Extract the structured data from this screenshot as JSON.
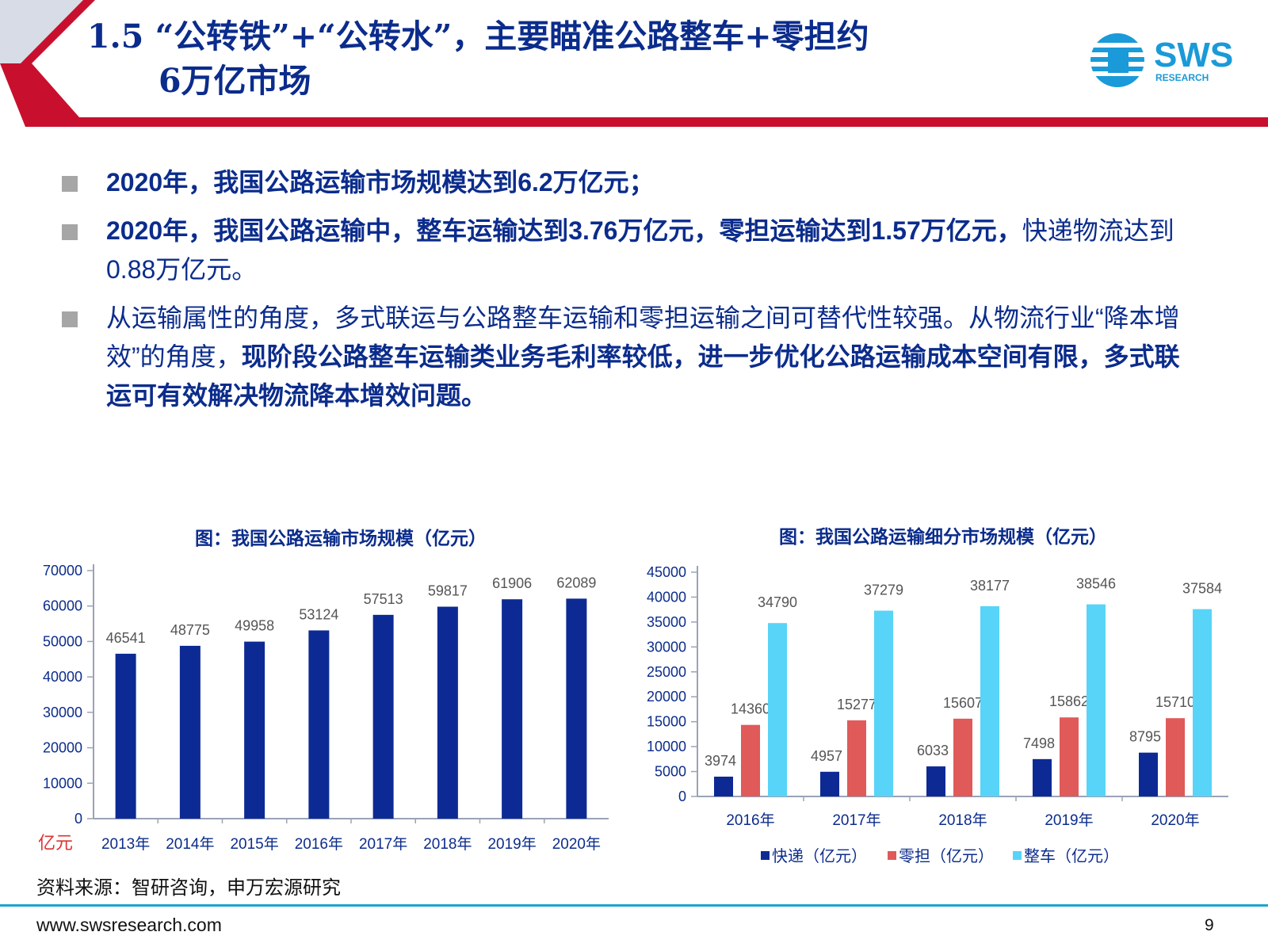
{
  "header": {
    "title_line1": "1.5 “公转铁”+“公转水”，主要瞄准公路整车+零担约",
    "title_line2": "6万亿市场",
    "logo_text": "SWS",
    "logo_subtext": "RESEARCH"
  },
  "bullets": [
    {
      "bold": "2020年，我国公路运输市场规模达到6.2万亿元；",
      "normal": "",
      "bold2": ""
    },
    {
      "bold": "2020年，我国公路运输中，整车运输达到3.76万亿元，零担运输达到1.57万亿元，",
      "normal": "快递物流达到0.88万亿元。",
      "bold2": ""
    },
    {
      "bold": "",
      "normal": "从运输属性的角度，多式联运与公路整车运输和零担运输之间可替代性较强。从物流行业“降本增效”的角度，",
      "bold2": "现阶段公路整车运输类业务毛利率较低，进一步优化公路运输成本空间有限，多式联运可有效解决物流降本增效问题。"
    }
  ],
  "chart_data": [
    {
      "type": "bar",
      "title": "图：我国公路运输市场规模（亿元）",
      "unit_label": "亿元",
      "categories": [
        "2013年",
        "2014年",
        "2015年",
        "2016年",
        "2017年",
        "2018年",
        "2019年",
        "2020年"
      ],
      "values": [
        46541,
        48775,
        49958,
        53124,
        57513,
        59817,
        61906,
        62089
      ],
      "yticks": [
        0,
        10000,
        20000,
        30000,
        40000,
        50000,
        60000,
        70000
      ],
      "ylim": [
        0,
        70000
      ],
      "color": "#0d2a94"
    },
    {
      "type": "bar",
      "title": "图：我国公路运输细分市场规模（亿元）",
      "categories": [
        "2016年",
        "2017年",
        "2018年",
        "2019年",
        "2020年"
      ],
      "series": [
        {
          "name": "快递（亿元）",
          "values": [
            3974,
            4957,
            6033,
            7498,
            8795
          ],
          "color": "#0d2a94"
        },
        {
          "name": "零担（亿元）",
          "values": [
            14360,
            15277,
            15607,
            15862,
            15710
          ],
          "color": "#e05a5a"
        },
        {
          "name": "整车（亿元）",
          "values": [
            34790,
            37279,
            38177,
            38546,
            37584
          ],
          "color": "#57d4f7"
        }
      ],
      "yticks": [
        0,
        5000,
        10000,
        15000,
        20000,
        25000,
        30000,
        35000,
        40000,
        45000
      ],
      "ylim": [
        0,
        45000
      ],
      "legend": "bottom"
    }
  ],
  "footer": {
    "source": "资料来源：智研咨询，申万宏源研究",
    "url": "www.swsresearch.com",
    "page": "9"
  },
  "colors": {
    "title": "#0b2c8c",
    "banner_red": "#c8102e",
    "rule": "#1aa6cf",
    "unit_label": "#e03030"
  }
}
